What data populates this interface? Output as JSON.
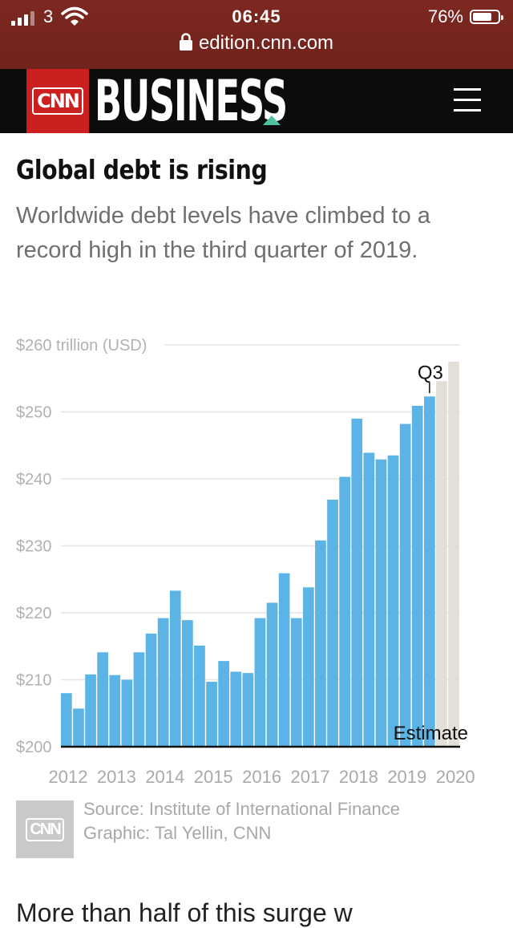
{
  "status_bar": {
    "carrier": "3",
    "time": "06:45",
    "battery_percent": "76%",
    "battery_level": 0.76,
    "url": "edition.cnn.com"
  },
  "header": {
    "logo_text": "CNN",
    "section": "BUSINESS",
    "accent_color": "#4fc3a1",
    "brand_color": "#cc1f1f"
  },
  "article": {
    "title": "Global debt is rising",
    "subtitle": "Worldwide debt levels have climbed to a record high in the third quarter of 2019.",
    "body_start": "More than half of this surge w"
  },
  "chart_data": {
    "type": "bar",
    "title": "",
    "ylabel": "",
    "ylim": [
      200,
      260
    ],
    "y_ticks": [
      "$200",
      "$210",
      "$220",
      "$230",
      "$240",
      "$250",
      "$260 trillion (USD)"
    ],
    "y_tick_values": [
      200,
      210,
      220,
      230,
      240,
      250,
      260
    ],
    "x_tick_labels": [
      "2012",
      "2013",
      "2014",
      "2015",
      "2016",
      "2017",
      "2018",
      "2019",
      "2020"
    ],
    "bar_color": "#5bb4e5",
    "estimate_color": "#e3ded6",
    "annotation": "Q3",
    "estimate_label": "Estimate",
    "series": [
      {
        "values": [
          208,
          205.7,
          210.8,
          214.1,
          210.7,
          210,
          214.1,
          216.9,
          219.2,
          223.3,
          218.9,
          215.1,
          209.7,
          212.8,
          211.2,
          211,
          219.2,
          221.5,
          225.9,
          219.2,
          223.8,
          230.8,
          236.9,
          240.3,
          249.0,
          243.9,
          242.9,
          243.5,
          248.2,
          250.9,
          252.3
        ]
      }
    ],
    "estimates": [
      254.6,
      257.5
    ]
  },
  "source": {
    "logo_text": "CNN",
    "source_line": "Source: Institute of International Finance",
    "graphic_line": "Graphic: Tal Yellin, CNN"
  }
}
